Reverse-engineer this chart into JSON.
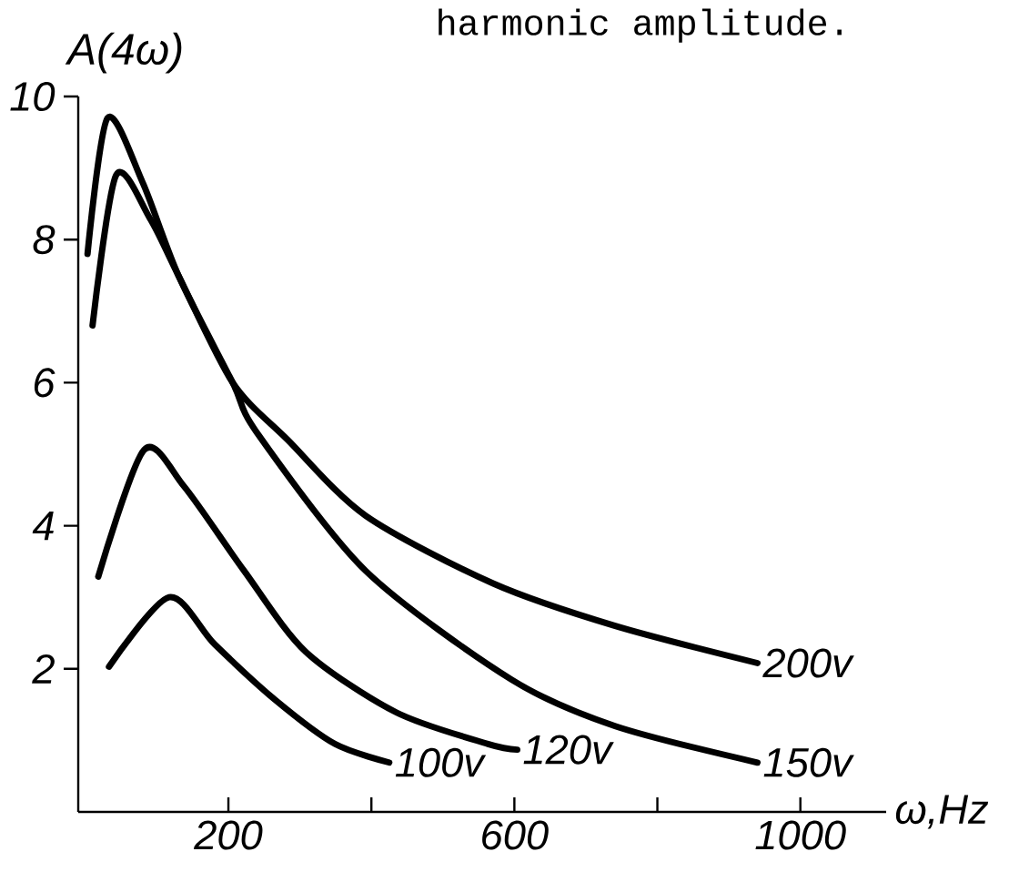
{
  "chart_data": {
    "type": "line",
    "title": "harmonic amplitude.",
    "xlabel": "ω,Hz",
    "ylabel": "A(4ω)",
    "xlim": [
      -10,
      1120
    ],
    "ylim": [
      0,
      10
    ],
    "xticks": [
      200,
      {
        "value": 400,
        "label": null
      },
      600,
      {
        "value": 800,
        "label": null
      },
      1000
    ],
    "yticks": [
      2,
      4,
      6,
      8,
      10
    ],
    "grid": false,
    "legend": false,
    "marker": "none",
    "line_style": "solid",
    "series": [
      {
        "name": "200v",
        "color": "#000000",
        "x": [
          10,
          43,
          90,
          130,
          206,
          283,
          392,
          571,
          741,
          940
        ],
        "values": [
          6.8,
          8.9,
          8.3,
          7.5,
          6.0,
          5.2,
          4.14,
          3.19,
          2.6,
          2.08
        ]
      },
      {
        "name": "150v",
        "color": "#000000",
        "x": [
          3,
          31,
          80,
          130,
          206,
          240,
          392,
          596,
          741,
          940
        ],
        "values": [
          7.8,
          9.7,
          8.8,
          7.5,
          6.0,
          5.3,
          3.37,
          1.85,
          1.2,
          0.69
        ]
      },
      {
        "name": "120v",
        "color": "#000000",
        "x": [
          18,
          82,
          138,
          222,
          308,
          435,
          563,
          604
        ],
        "values": [
          3.29,
          5.06,
          4.55,
          3.37,
          2.24,
          1.39,
          0.95,
          0.87
        ]
      },
      {
        "name": "100v",
        "color": "#000000",
        "x": [
          33,
          117,
          181,
          265,
          349,
          425
        ],
        "values": [
          2.03,
          3.0,
          2.34,
          1.57,
          0.95,
          0.69
        ]
      }
    ]
  }
}
